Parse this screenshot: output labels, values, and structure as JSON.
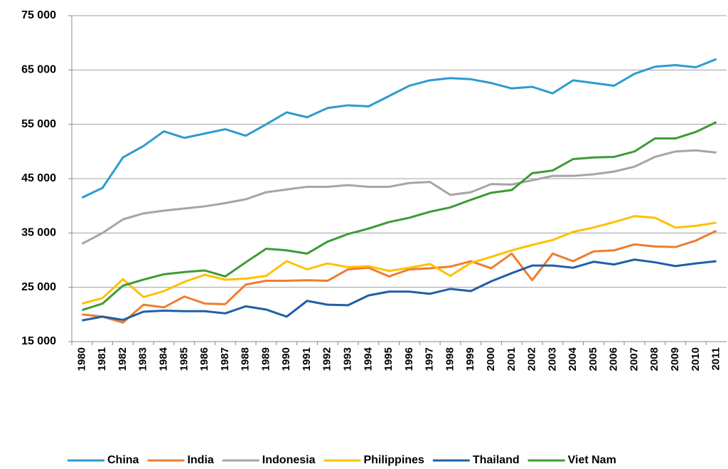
{
  "chart_data": {
    "type": "line",
    "categories": [
      "1980",
      "1981",
      "1982",
      "1983",
      "1984",
      "1985",
      "1986",
      "1987",
      "1988",
      "1989",
      "1990",
      "1991",
      "1992",
      "1993",
      "1994",
      "1995",
      "1996",
      "1997",
      "1998",
      "1999",
      "2000",
      "2001",
      "2002",
      "2003",
      "2004",
      "2005",
      "2006",
      "2007",
      "2008",
      "2009",
      "2010",
      "2011"
    ],
    "series": [
      {
        "name": "China",
        "color": "#2e9bd1",
        "values": [
          41500,
          43300,
          48900,
          51000,
          53700,
          52500,
          53300,
          54100,
          52900,
          55000,
          57200,
          56300,
          58000,
          58500,
          58300,
          60200,
          62100,
          63100,
          63500,
          63300,
          62600,
          61600,
          61900,
          60700,
          63100,
          62600,
          62100,
          64300,
          65600,
          65900,
          65500,
          67000
        ]
      },
      {
        "name": "India",
        "color": "#ed7d31",
        "values": [
          20000,
          19600,
          18500,
          21800,
          21300,
          23300,
          22000,
          21900,
          25500,
          26200,
          26200,
          26300,
          26200,
          28300,
          28600,
          27000,
          28300,
          28500,
          28800,
          29800,
          28500,
          31200,
          26300,
          31200,
          29800,
          31600,
          31800,
          32900,
          32500,
          32400,
          33600,
          35400
        ]
      },
      {
        "name": "Indonesia",
        "color": "#a5a5a5",
        "values": [
          33000,
          35000,
          37500,
          38600,
          39100,
          39500,
          39900,
          40500,
          41200,
          42500,
          43000,
          43500,
          43500,
          43800,
          43500,
          43500,
          44200,
          44400,
          42000,
          42500,
          44000,
          43900,
          44700,
          45500,
          45500,
          45800,
          46300,
          47200,
          49000,
          50000,
          50200,
          49800
        ]
      },
      {
        "name": "Philippines",
        "color": "#ffc000",
        "values": [
          22000,
          23000,
          26500,
          23200,
          24300,
          26000,
          27300,
          26400,
          26600,
          27100,
          29800,
          28300,
          29400,
          28700,
          28900,
          28000,
          28600,
          29300,
          27100,
          29500,
          30600,
          31800,
          32800,
          33700,
          35200,
          36000,
          37000,
          38100,
          37800,
          36000,
          36300,
          36900
        ]
      },
      {
        "name": "Thailand",
        "color": "#1f5fa8",
        "values": [
          18900,
          19600,
          19000,
          20500,
          20700,
          20600,
          20600,
          20200,
          21500,
          20900,
          19600,
          22500,
          21800,
          21700,
          23500,
          24200,
          24200,
          23800,
          24700,
          24300,
          26100,
          27600,
          29000,
          29000,
          28600,
          29700,
          29200,
          30100,
          29600,
          28900,
          29400,
          29800
        ]
      },
      {
        "name": "Viet Nam",
        "color": "#3d9b35",
        "values": [
          20800,
          22000,
          25300,
          26400,
          27400,
          27800,
          28100,
          27000,
          29600,
          32100,
          31800,
          31200,
          33400,
          34800,
          35800,
          37000,
          37800,
          38900,
          39700,
          41100,
          42400,
          42900,
          46000,
          46500,
          48600,
          48900,
          49000,
          50000,
          52400,
          52400,
          53600,
          55400
        ]
      }
    ],
    "ylim": [
      15000,
      75000
    ],
    "yticks": [
      {
        "value": 15000,
        "label": "15 000"
      },
      {
        "value": 25000,
        "label": "25 000"
      },
      {
        "value": 35000,
        "label": "35 000"
      },
      {
        "value": 45000,
        "label": "45 000"
      },
      {
        "value": 55000,
        "label": "55 000"
      },
      {
        "value": 65000,
        "label": "65 000"
      },
      {
        "value": 75000,
        "label": "75 000"
      }
    ],
    "grid": true
  }
}
